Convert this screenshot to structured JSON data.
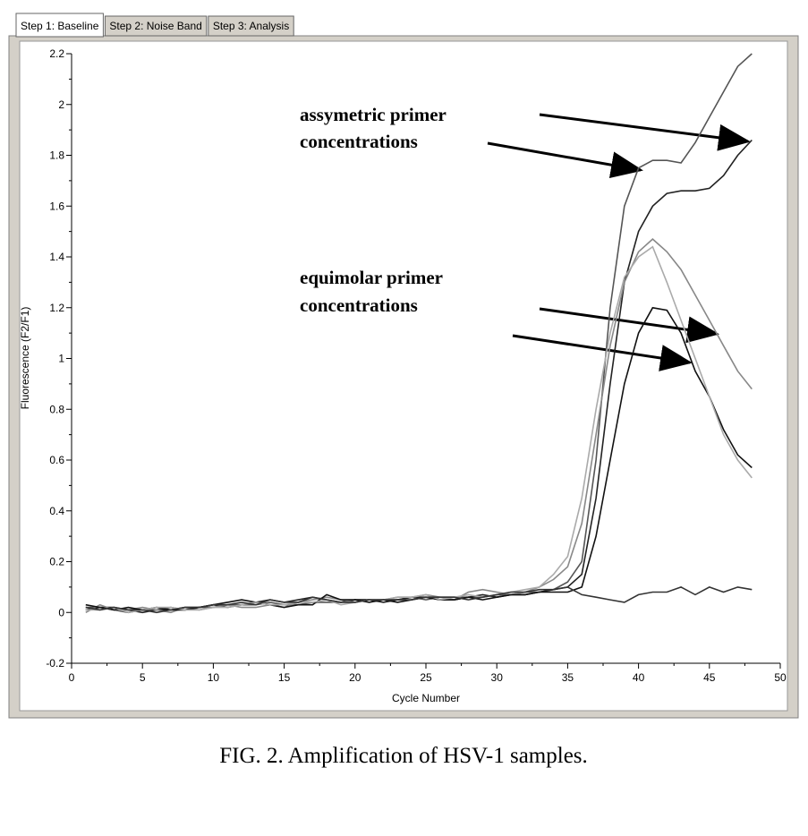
{
  "tabs": [
    "Step 1: Baseline",
    "Step 2: Noise Band",
    "Step 3: Analysis"
  ],
  "caption": "FIG. 2. Amplification of HSV-1 samples.",
  "chart_data": {
    "type": "line",
    "xlabel": "Cycle Number",
    "ylabel": "Fluorescence (F2/F1)",
    "annotations": [
      "assymetric primer",
      "concentrations",
      "equimolar primer",
      "concentrations"
    ],
    "xlim": [
      0,
      50
    ],
    "xticks": [
      0,
      5,
      10,
      15,
      20,
      25,
      30,
      35,
      40,
      45,
      50
    ],
    "ylim": [
      -0.2,
      2.2
    ],
    "yticks": [
      -0.2,
      0,
      0.2,
      0.4,
      0.6,
      0.8,
      1,
      1.2,
      1.4,
      1.6,
      1.8,
      2,
      2.2
    ],
    "x": [
      1,
      2,
      3,
      4,
      5,
      6,
      7,
      8,
      9,
      10,
      11,
      12,
      13,
      14,
      15,
      16,
      17,
      18,
      19,
      20,
      21,
      22,
      23,
      24,
      25,
      26,
      27,
      28,
      29,
      30,
      31,
      32,
      33,
      34,
      35,
      36,
      37,
      38,
      39,
      40,
      41,
      42,
      43,
      44,
      45,
      46,
      47,
      48
    ],
    "series": [
      {
        "color": "#555555",
        "values": [
          0.02,
          0.02,
          0.01,
          0.0,
          0.01,
          0.01,
          0.02,
          0.01,
          0.02,
          0.02,
          0.03,
          0.03,
          0.03,
          0.04,
          0.03,
          0.03,
          0.04,
          0.04,
          0.04,
          0.05,
          0.05,
          0.05,
          0.05,
          0.06,
          0.05,
          0.06,
          0.06,
          0.06,
          0.06,
          0.07,
          0.07,
          0.08,
          0.08,
          0.09,
          0.12,
          0.2,
          0.6,
          1.2,
          1.6,
          1.75,
          1.78,
          1.78,
          1.77,
          1.85,
          1.95,
          2.05,
          2.15,
          2.2
        ]
      },
      {
        "color": "#222222",
        "values": [
          0.01,
          0.02,
          0.02,
          0.01,
          0.0,
          0.01,
          0.01,
          0.02,
          0.02,
          0.03,
          0.02,
          0.03,
          0.04,
          0.05,
          0.04,
          0.05,
          0.06,
          0.05,
          0.04,
          0.05,
          0.05,
          0.04,
          0.05,
          0.06,
          0.06,
          0.05,
          0.05,
          0.06,
          0.07,
          0.06,
          0.07,
          0.07,
          0.08,
          0.09,
          0.1,
          0.15,
          0.45,
          0.9,
          1.3,
          1.5,
          1.6,
          1.65,
          1.66,
          1.66,
          1.67,
          1.72,
          1.8,
          1.86
        ]
      },
      {
        "color": "#888888",
        "values": [
          0.0,
          0.03,
          0.01,
          0.01,
          0.02,
          0.01,
          0.0,
          0.02,
          0.01,
          0.02,
          0.03,
          0.02,
          0.02,
          0.03,
          0.02,
          0.04,
          0.05,
          0.06,
          0.05,
          0.04,
          0.05,
          0.05,
          0.06,
          0.06,
          0.07,
          0.06,
          0.05,
          0.08,
          0.09,
          0.08,
          0.07,
          0.08,
          0.1,
          0.13,
          0.18,
          0.35,
          0.7,
          1.05,
          1.3,
          1.42,
          1.47,
          1.42,
          1.35,
          1.25,
          1.15,
          1.05,
          0.95,
          0.88
        ]
      },
      {
        "color": "#111111",
        "values": [
          0.03,
          0.02,
          0.01,
          0.02,
          0.01,
          0.02,
          0.01,
          0.01,
          0.02,
          0.03,
          0.04,
          0.05,
          0.04,
          0.03,
          0.02,
          0.03,
          0.03,
          0.07,
          0.05,
          0.05,
          0.04,
          0.05,
          0.04,
          0.05,
          0.06,
          0.05,
          0.05,
          0.06,
          0.05,
          0.06,
          0.07,
          0.07,
          0.08,
          0.08,
          0.08,
          0.1,
          0.3,
          0.6,
          0.9,
          1.1,
          1.2,
          1.19,
          1.1,
          0.95,
          0.85,
          0.72,
          0.62,
          0.57
        ]
      },
      {
        "color": "#aaaaaa",
        "values": [
          0.01,
          0.01,
          0.02,
          0.0,
          0.01,
          0.02,
          0.02,
          0.01,
          0.01,
          0.02,
          0.02,
          0.03,
          0.04,
          0.03,
          0.03,
          0.04,
          0.04,
          0.05,
          0.03,
          0.04,
          0.05,
          0.05,
          0.06,
          0.06,
          0.07,
          0.05,
          0.06,
          0.07,
          0.06,
          0.07,
          0.08,
          0.09,
          0.1,
          0.15,
          0.22,
          0.45,
          0.8,
          1.1,
          1.32,
          1.4,
          1.44,
          1.3,
          1.15,
          1.0,
          0.85,
          0.7,
          0.6,
          0.53
        ]
      },
      {
        "color": "#333333",
        "values": [
          0.02,
          0.01,
          0.02,
          0.01,
          0.01,
          0.0,
          0.01,
          0.02,
          0.02,
          0.03,
          0.03,
          0.04,
          0.03,
          0.05,
          0.04,
          0.04,
          0.06,
          0.05,
          0.04,
          0.04,
          0.05,
          0.05,
          0.05,
          0.05,
          0.06,
          0.06,
          0.06,
          0.05,
          0.06,
          0.07,
          0.08,
          0.08,
          0.09,
          0.09,
          0.1,
          0.07,
          0.06,
          0.05,
          0.04,
          0.07,
          0.08,
          0.08,
          0.1,
          0.07,
          0.1,
          0.08,
          0.1,
          0.09
        ]
      }
    ]
  }
}
